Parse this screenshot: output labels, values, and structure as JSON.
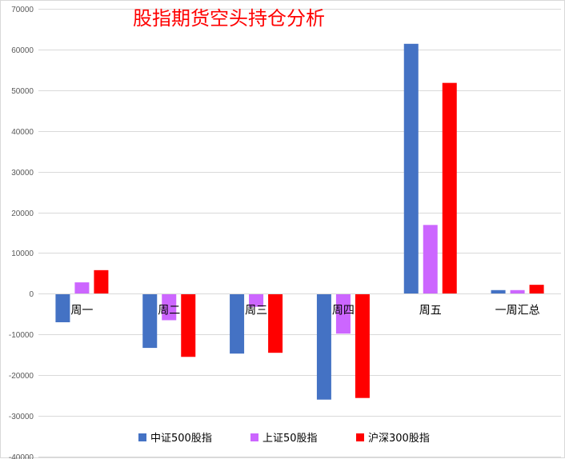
{
  "chart_data": {
    "type": "bar",
    "title": "股指期货空头持仓分析",
    "categories": [
      "周一",
      "周二",
      "周三",
      "周四",
      "周五",
      "一周汇总"
    ],
    "series": [
      {
        "name": "中证500股指",
        "color": "#4472c4",
        "values": [
          -7000,
          -13300,
          -14700,
          -26000,
          61400,
          900
        ]
      },
      {
        "name": "上证50股指",
        "color": "#cc66ff",
        "values": [
          2800,
          -6500,
          -3200,
          -9800,
          16900,
          900
        ]
      },
      {
        "name": "沪深300股指",
        "color": "#ff0000",
        "values": [
          5800,
          -15500,
          -14500,
          -25600,
          51800,
          2200
        ]
      }
    ],
    "ylim": [
      -40000,
      70000
    ],
    "yticks": [
      70000,
      60000,
      50000,
      40000,
      30000,
      20000,
      10000,
      0,
      -10000,
      -20000,
      -30000,
      -40000
    ],
    "grid": true,
    "legend_position": "bottom"
  }
}
